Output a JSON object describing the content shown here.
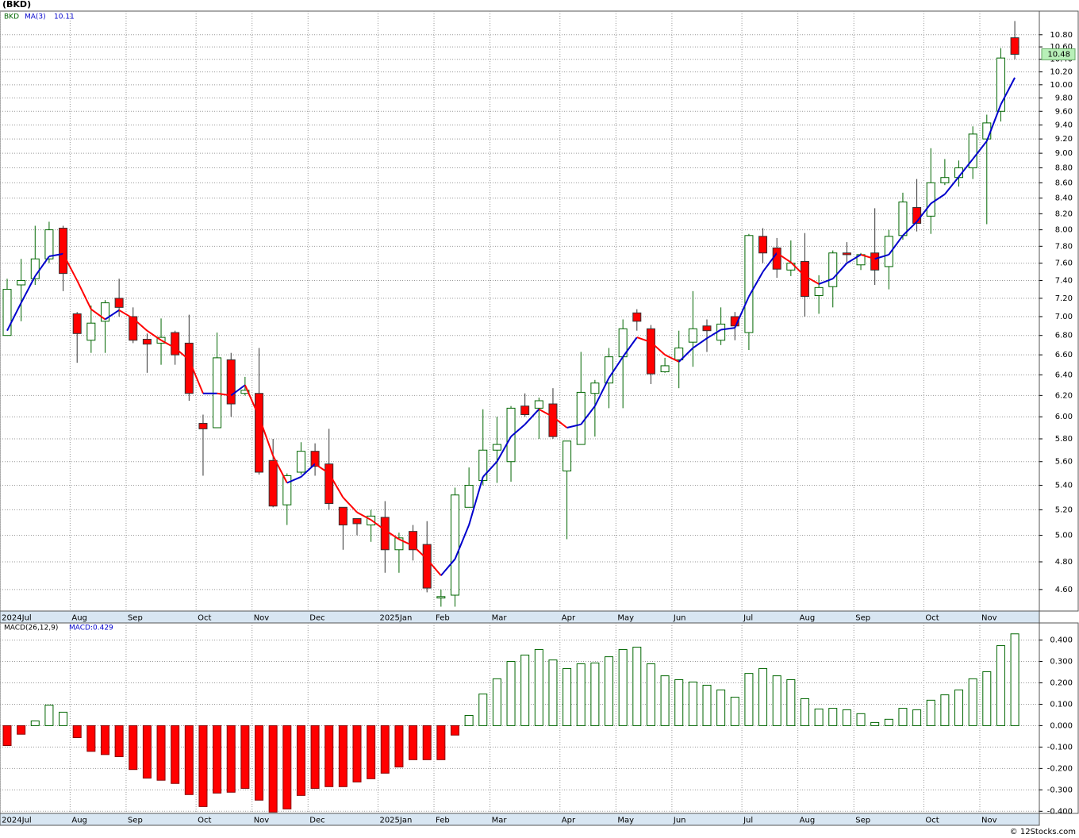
{
  "header": "(BKD)",
  "footer": "© 12Stocks.com",
  "chart_data": [
    {
      "type": "candlestick",
      "symbol": "BKD",
      "ma_name": "MA(3)",
      "ma_last": 10.11,
      "last_price": 10.48,
      "log_scale": true,
      "grid": true,
      "up_color": "#006600",
      "down_color": "#ff0000",
      "last_price_color": "#b8f0b8",
      "categories": [
        "2024Jul",
        null,
        null,
        null,
        null,
        "Aug",
        null,
        null,
        null,
        "Sep",
        null,
        null,
        null,
        null,
        "Oct",
        null,
        null,
        null,
        "Nov",
        null,
        null,
        null,
        "Dec",
        null,
        null,
        null,
        null,
        "2025Jan",
        null,
        null,
        null,
        "Feb",
        null,
        null,
        null,
        "Mar",
        null,
        null,
        null,
        null,
        "Apr",
        null,
        null,
        null,
        "May",
        null,
        null,
        null,
        "Jun",
        null,
        null,
        null,
        null,
        "Jul",
        null,
        null,
        null,
        "Aug",
        null,
        null,
        null,
        "Sep",
        null,
        null,
        null,
        null,
        "Oct",
        null,
        null,
        null,
        "Nov",
        null,
        null
      ],
      "open": [
        6.8,
        7.35,
        7.42,
        7.65,
        8.02,
        7.03,
        6.75,
        6.95,
        7.2,
        7.0,
        6.76,
        6.72,
        6.83,
        6.72,
        5.94,
        5.9,
        6.55,
        6.22,
        6.22,
        5.61,
        5.24,
        5.51,
        5.69,
        5.58,
        5.22,
        5.13,
        5.08,
        5.14,
        4.89,
        5.03,
        4.93,
        4.54,
        4.56,
        5.22,
        5.44,
        5.7,
        5.6,
        6.1,
        6.08,
        6.12,
        5.52,
        5.75,
        6.22,
        6.32,
        6.58,
        7.04,
        6.87,
        6.43,
        6.55,
        6.73,
        6.9,
        6.75,
        7.0,
        6.83,
        7.92,
        7.78,
        7.52,
        7.62,
        7.23,
        7.33,
        7.72,
        7.58,
        7.72,
        7.56,
        7.93,
        8.28,
        8.17,
        8.6,
        8.67,
        8.8,
        9.2,
        9.6,
        10.75
      ],
      "high": [
        7.42,
        7.65,
        8.05,
        8.1,
        8.05,
        7.05,
        7.12,
        7.18,
        7.42,
        7.1,
        6.82,
        6.98,
        6.85,
        7.02,
        6.02,
        6.83,
        6.62,
        6.38,
        6.67,
        5.8,
        5.5,
        5.77,
        5.76,
        5.89,
        5.22,
        5.13,
        5.2,
        5.27,
        5.02,
        5.08,
        5.11,
        4.6,
        5.38,
        5.55,
        6.07,
        6.0,
        6.1,
        6.22,
        6.18,
        6.27,
        5.78,
        6.63,
        6.35,
        6.67,
        6.97,
        7.08,
        6.91,
        6.57,
        6.85,
        7.28,
        6.97,
        7.1,
        7.05,
        7.95,
        8.02,
        7.9,
        7.87,
        7.96,
        7.46,
        7.75,
        7.85,
        7.72,
        8.27,
        8.0,
        8.47,
        8.65,
        9.07,
        8.92,
        8.9,
        9.38,
        9.55,
        10.58,
        11.03
      ],
      "low": [
        6.8,
        6.95,
        7.35,
        7.6,
        7.28,
        6.52,
        6.62,
        6.62,
        7.0,
        6.72,
        6.42,
        6.5,
        6.5,
        6.15,
        5.48,
        5.9,
        6.0,
        6.2,
        5.49,
        5.22,
        5.08,
        5.49,
        5.48,
        5.2,
        4.89,
        5.0,
        4.95,
        4.72,
        4.72,
        4.81,
        4.58,
        4.48,
        4.48,
        5.22,
        5.4,
        5.42,
        5.43,
        6.0,
        5.8,
        5.8,
        4.97,
        5.75,
        5.82,
        6.08,
        6.08,
        6.85,
        6.31,
        6.42,
        6.27,
        6.48,
        6.63,
        6.7,
        6.75,
        6.65,
        7.6,
        7.43,
        7.45,
        7.0,
        7.03,
        7.1,
        7.6,
        7.52,
        7.35,
        7.3,
        7.88,
        7.98,
        7.95,
        8.57,
        8.55,
        8.65,
        8.07,
        9.45,
        10.4
      ],
      "close": [
        7.3,
        7.4,
        7.65,
        8.0,
        7.48,
        6.82,
        6.93,
        7.15,
        7.1,
        6.75,
        6.71,
        6.78,
        6.6,
        6.22,
        5.89,
        6.57,
        6.12,
        6.25,
        5.51,
        5.23,
        5.48,
        5.69,
        5.56,
        5.25,
        5.08,
        5.09,
        5.15,
        4.89,
        4.98,
        4.89,
        4.61,
        4.55,
        5.32,
        5.4,
        5.7,
        5.75,
        6.08,
        6.02,
        6.15,
        5.82,
        5.78,
        6.23,
        6.32,
        6.58,
        6.87,
        6.95,
        6.41,
        6.49,
        6.67,
        6.87,
        6.85,
        6.92,
        6.9,
        7.93,
        7.72,
        7.53,
        7.6,
        7.22,
        7.32,
        7.72,
        7.7,
        7.7,
        7.52,
        7.92,
        8.35,
        8.08,
        8.6,
        8.67,
        8.8,
        9.27,
        9.43,
        10.42,
        10.48
      ],
      "ma": {
        "up_color": "#0000cc",
        "down_color": "#ff0000",
        "values": [
          6.85,
          7.15,
          7.45,
          7.68,
          7.71,
          7.4,
          7.08,
          6.97,
          7.07,
          6.98,
          6.85,
          6.75,
          6.67,
          6.55,
          6.22,
          6.22,
          6.2,
          6.3,
          6.0,
          5.65,
          5.42,
          5.47,
          5.58,
          5.5,
          5.3,
          5.18,
          5.12,
          5.04,
          4.97,
          4.92,
          4.82,
          4.7,
          4.82,
          5.08,
          5.47,
          5.6,
          5.82,
          5.93,
          6.07,
          6.0,
          5.9,
          5.93,
          6.1,
          6.37,
          6.58,
          6.78,
          6.73,
          6.6,
          6.53,
          6.67,
          6.77,
          6.86,
          6.88,
          7.22,
          7.5,
          7.72,
          7.61,
          7.45,
          7.36,
          7.42,
          7.6,
          7.7,
          7.65,
          7.7,
          7.93,
          8.1,
          8.33,
          8.45,
          8.68,
          8.92,
          9.17,
          9.7,
          10.11
        ]
      },
      "ylim": [
        4.45,
        11.2
      ],
      "yticks": [
        {
          "value": 4.6,
          "label": "4.60"
        },
        {
          "value": 4.8,
          "label": "4.80"
        },
        {
          "value": 5.0,
          "label": "5.00"
        },
        {
          "value": 5.2,
          "label": "5.20"
        },
        {
          "value": 5.4,
          "label": "5.40"
        },
        {
          "value": 5.6,
          "label": "5.60"
        },
        {
          "value": 5.8,
          "label": "5.80"
        },
        {
          "value": 6.0,
          "label": "6.00"
        },
        {
          "value": 6.2,
          "label": "6.20"
        },
        {
          "value": 6.4,
          "label": "6.40"
        },
        {
          "value": 6.6,
          "label": "6.60"
        },
        {
          "value": 6.8,
          "label": "6.80"
        },
        {
          "value": 7.0,
          "label": "7.00"
        },
        {
          "value": 7.2,
          "label": "7.20"
        },
        {
          "value": 7.4,
          "label": "7.40"
        },
        {
          "value": 7.6,
          "label": "7.60"
        },
        {
          "value": 7.8,
          "label": "7.80"
        },
        {
          "value": 8.0,
          "label": "8.00"
        },
        {
          "value": 8.2,
          "label": "8.20"
        },
        {
          "value": 8.4,
          "label": "8.40"
        },
        {
          "value": 8.6,
          "label": "8.60"
        },
        {
          "value": 8.8,
          "label": "8.80"
        },
        {
          "value": 9.0,
          "label": "9.00"
        },
        {
          "value": 9.2,
          "label": "9.20"
        },
        {
          "value": 9.4,
          "label": "9.40"
        },
        {
          "value": 9.6,
          "label": "9.60"
        },
        {
          "value": 9.8,
          "label": "9.80"
        },
        {
          "value": 10.0,
          "label": "10.00"
        },
        {
          "value": 10.2,
          "label": "10.20"
        },
        {
          "value": 10.4,
          "label": "10.40"
        },
        {
          "value": 10.6,
          "label": "10.60"
        },
        {
          "value": 10.8,
          "label": "10.80"
        }
      ]
    },
    {
      "type": "bar",
      "title": "MACD(26,12,9)",
      "value_label": "MACD:0.429",
      "grid": true,
      "pos_color": "#006600",
      "neg_color": "#ff0000",
      "categories": [
        "2024Jul",
        null,
        null,
        null,
        null,
        "Aug",
        null,
        null,
        null,
        "Sep",
        null,
        null,
        null,
        null,
        "Oct",
        null,
        null,
        null,
        "Nov",
        null,
        null,
        null,
        "Dec",
        null,
        null,
        null,
        null,
        "2025Jan",
        null,
        null,
        null,
        "Feb",
        null,
        null,
        null,
        "Mar",
        null,
        null,
        null,
        null,
        "Apr",
        null,
        null,
        null,
        "May",
        null,
        null,
        null,
        "Jun",
        null,
        null,
        null,
        null,
        "Jul",
        null,
        null,
        null,
        "Aug",
        null,
        null,
        null,
        "Sep",
        null,
        null,
        null,
        null,
        "Oct",
        null,
        null,
        null,
        "Nov",
        null,
        null
      ],
      "values": [
        -0.093,
        -0.04,
        0.022,
        0.096,
        0.063,
        -0.056,
        -0.12,
        -0.135,
        -0.145,
        -0.205,
        -0.245,
        -0.255,
        -0.27,
        -0.322,
        -0.378,
        -0.315,
        -0.311,
        -0.293,
        -0.348,
        -0.404,
        -0.389,
        -0.326,
        -0.293,
        -0.285,
        -0.285,
        -0.263,
        -0.248,
        -0.222,
        -0.193,
        -0.159,
        -0.159,
        -0.159,
        -0.044,
        0.048,
        0.148,
        0.219,
        0.3,
        0.33,
        0.356,
        0.307,
        0.267,
        0.289,
        0.293,
        0.322,
        0.356,
        0.367,
        0.289,
        0.233,
        0.215,
        0.204,
        0.189,
        0.167,
        0.133,
        0.244,
        0.267,
        0.233,
        0.215,
        0.126,
        0.078,
        0.081,
        0.074,
        0.056,
        0.015,
        0.03,
        0.081,
        0.074,
        0.119,
        0.144,
        0.167,
        0.219,
        0.252,
        0.374,
        0.429
      ],
      "ylim": [
        -0.41,
        0.48
      ],
      "yticks": [
        {
          "value": -0.4,
          "label": "-0.400"
        },
        {
          "value": -0.3,
          "label": "-0.300"
        },
        {
          "value": -0.2,
          "label": "-0.200"
        },
        {
          "value": -0.1,
          "label": "-0.100"
        },
        {
          "value": 0,
          "label": "0.000"
        },
        {
          "value": 0.1,
          "label": "0.100"
        },
        {
          "value": 0.2,
          "label": "0.200"
        },
        {
          "value": 0.3,
          "label": "0.300"
        },
        {
          "value": 0.4,
          "label": "0.400"
        }
      ]
    }
  ]
}
